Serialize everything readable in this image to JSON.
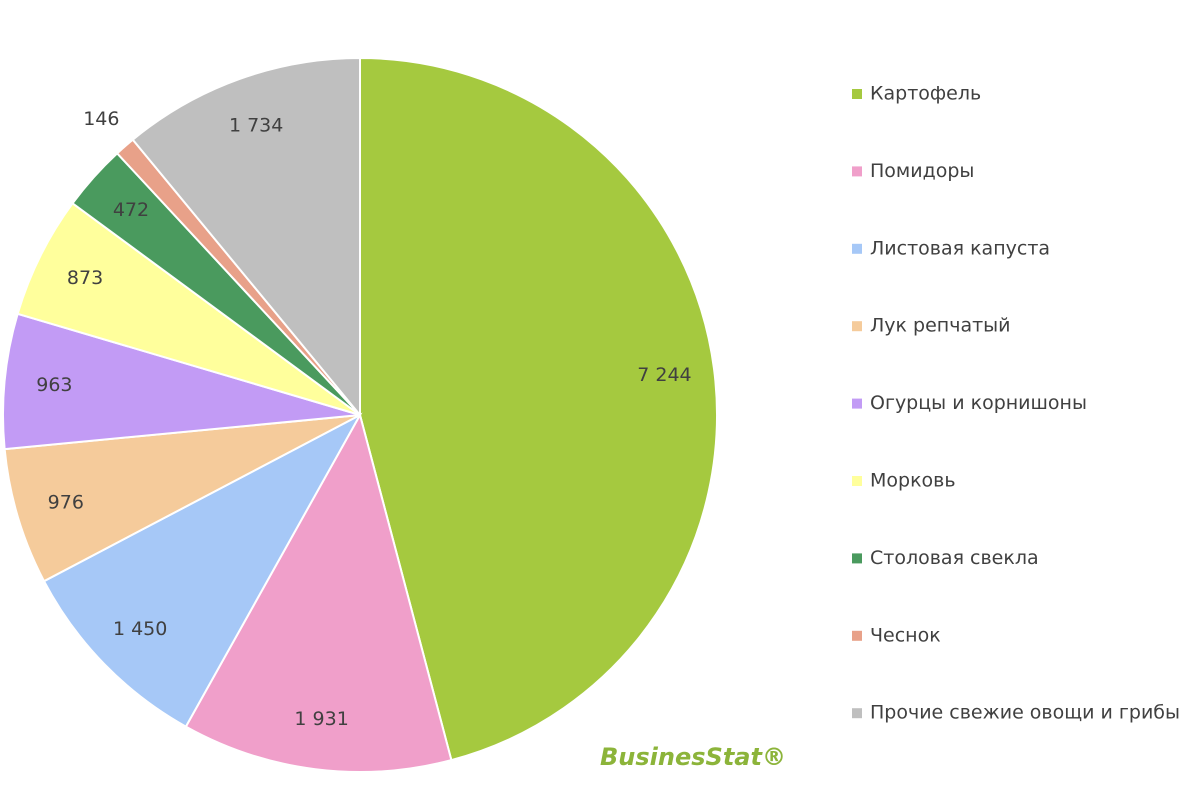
{
  "chart_data": {
    "type": "pie",
    "categories": [
      "Картофель",
      "Помидоры",
      "Листовая капуста",
      "Лук репчатый",
      "Огурцы и корнишоны",
      "Морковь",
      "Столовая свекла",
      "Чеснок",
      "Прочие свежие овощи и грибы"
    ],
    "values": [
      7244,
      1931,
      1450,
      976,
      963,
      873,
      472,
      146,
      1734
    ],
    "value_labels": [
      "7 244",
      "1 931",
      "1 450",
      "976",
      "963",
      "873",
      "472",
      "146",
      "1 734"
    ],
    "colors": [
      "#a5c93f",
      "#f09fca",
      "#a6c8f7",
      "#f5cb9b",
      "#c29bf5",
      "#ffff9c",
      "#4a9a5e",
      "#e8a189",
      "#bfbfbf"
    ],
    "legend": "right",
    "watermark": "BusinesStat®"
  }
}
